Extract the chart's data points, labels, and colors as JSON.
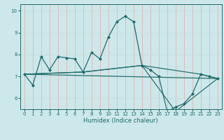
{
  "xlabel": "Humidex (Indice chaleur)",
  "xlim": [
    -0.5,
    23.5
  ],
  "ylim": [
    5.5,
    10.3
  ],
  "yticks": [
    6,
    7,
    8,
    9,
    10
  ],
  "xticks": [
    0,
    1,
    2,
    3,
    4,
    5,
    6,
    7,
    8,
    9,
    10,
    11,
    12,
    13,
    14,
    15,
    16,
    17,
    18,
    19,
    20,
    21,
    22,
    23
  ],
  "bg_color": "#cde8ea",
  "line_color": "#1e6b6b",
  "grid_color_v": "#e8b0b0",
  "grid_color_h": "#c8dede",
  "lines": [
    {
      "x": [
        0,
        1,
        2,
        3,
        4,
        5,
        6,
        7,
        8,
        9,
        10,
        11,
        12,
        13,
        14,
        15,
        16,
        17,
        18,
        19,
        20,
        21,
        22,
        23
      ],
      "y": [
        7.1,
        6.6,
        7.9,
        7.3,
        7.9,
        7.85,
        7.8,
        7.2,
        8.1,
        7.8,
        8.8,
        9.5,
        9.75,
        9.5,
        7.5,
        7.3,
        7.0,
        5.4,
        5.6,
        5.75,
        6.2,
        7.1,
        7.0,
        6.9
      ],
      "marker": true
    },
    {
      "x": [
        0,
        7,
        14,
        21,
        23
      ],
      "y": [
        7.1,
        7.2,
        7.5,
        7.1,
        6.9
      ],
      "marker": false
    },
    {
      "x": [
        0,
        23
      ],
      "y": [
        7.1,
        6.9
      ],
      "marker": false
    },
    {
      "x": [
        0,
        7,
        14,
        18,
        23
      ],
      "y": [
        7.1,
        7.2,
        7.5,
        5.4,
        6.9
      ],
      "marker": false
    }
  ],
  "tick_fontsize": 5.0,
  "xlabel_fontsize": 6.0
}
